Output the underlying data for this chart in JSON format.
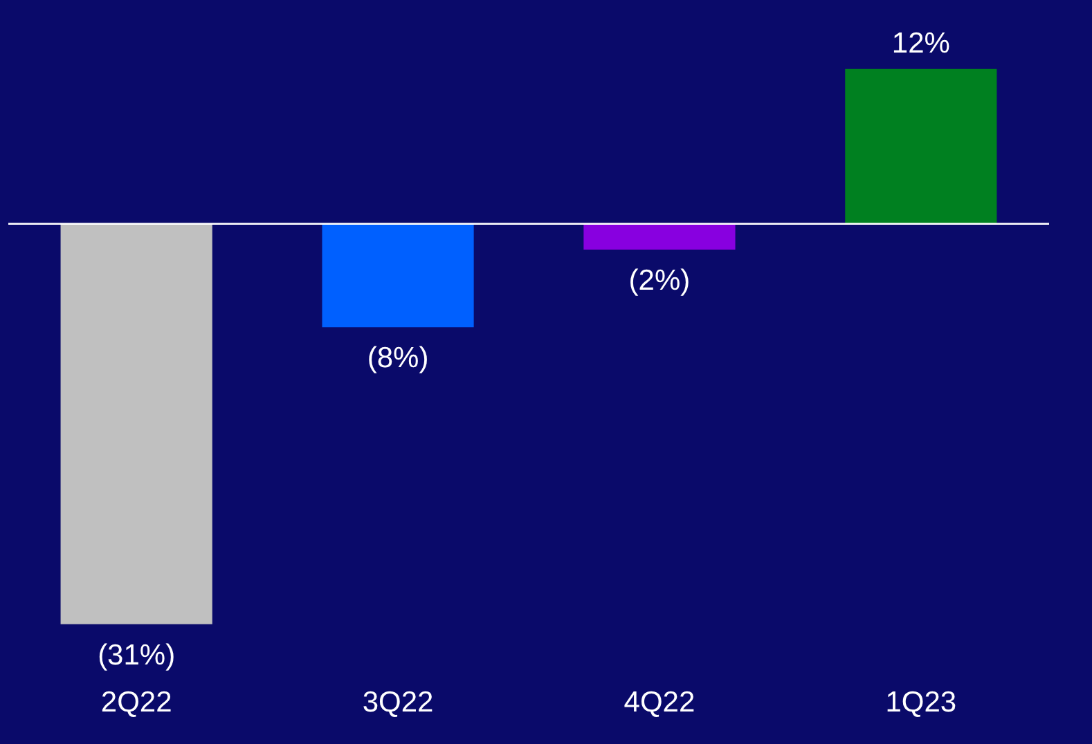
{
  "chart_data": {
    "type": "bar",
    "categories": [
      "2Q22",
      "3Q22",
      "4Q22",
      "1Q23"
    ],
    "values": [
      -31,
      -8,
      -2,
      12
    ],
    "colors": [
      "#c0c0c0",
      "#0060ff",
      "#8800e0",
      "#008020"
    ],
    "value_labels": [
      "(31%)",
      "(8%)",
      "(2%)",
      "12%"
    ]
  }
}
